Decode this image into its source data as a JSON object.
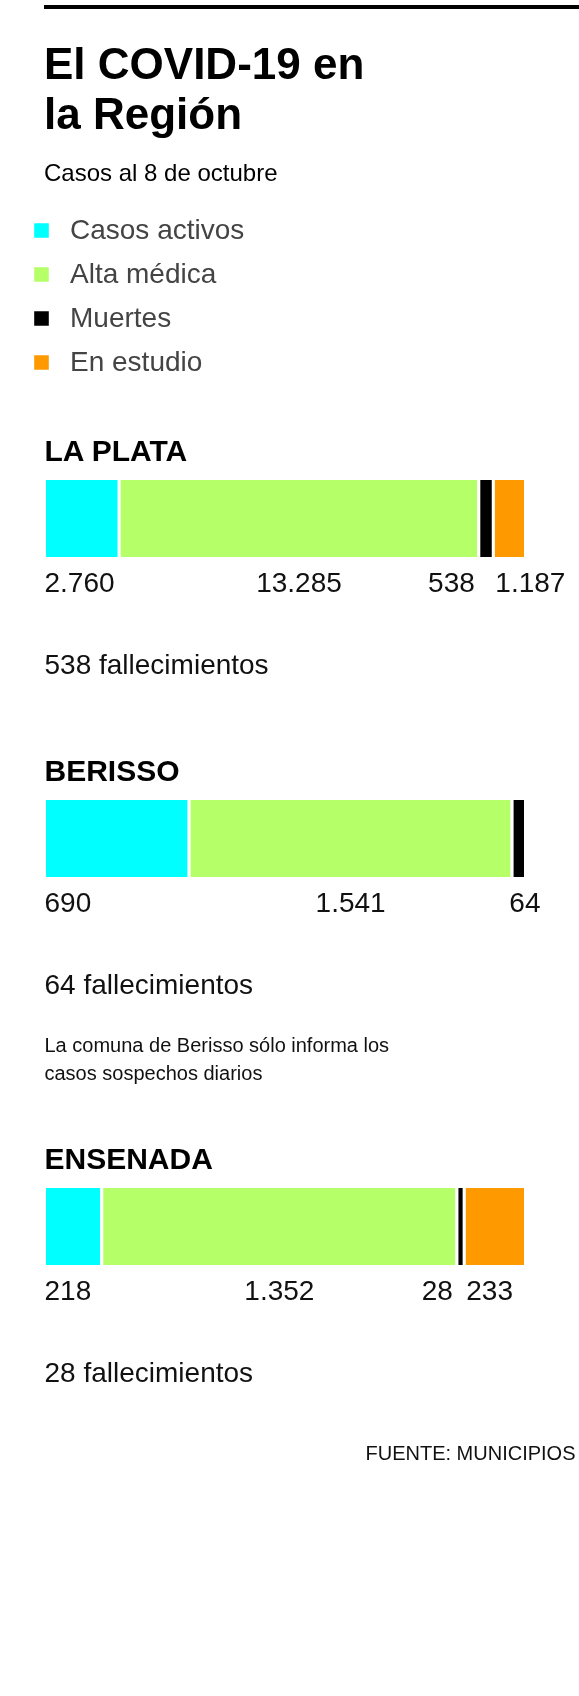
{
  "chart_data": [
    {
      "type": "other",
      "title": "El COVID-19 en la Región",
      "subtitle": "Casos al 8 de octubre"
    },
    {
      "type": "bar",
      "orientation": "horizontal",
      "stacked": true,
      "title": "LA PLATA",
      "categories": [
        null
      ],
      "legend": "top",
      "series": [
        {
          "name": "Casos activos",
          "color": "#00ffff",
          "values": [
            2760
          ],
          "value_labels": [
            "2.760"
          ]
        },
        {
          "name": "Alta médica",
          "color": "#b5ff69",
          "values": [
            13285
          ],
          "value_labels": [
            "13.285"
          ]
        },
        {
          "name": "Muertes",
          "color": "#000000",
          "values": [
            538
          ],
          "value_labels": [
            "538"
          ]
        },
        {
          "name": "En estudio",
          "color": "#ff9900",
          "values": [
            1187
          ],
          "value_labels": [
            "1.187"
          ]
        }
      ],
      "annotations": [
        "538 fallecimientos"
      ]
    },
    {
      "type": "bar",
      "orientation": "horizontal",
      "stacked": true,
      "title": "BERISSO",
      "categories": [
        null
      ],
      "series": [
        {
          "color": "#00ffff",
          "values": [
            690
          ],
          "value_labels": [
            "690"
          ]
        },
        {
          "color": "#b5ff69",
          "values": [
            1541
          ],
          "value_labels": [
            "1.541"
          ]
        },
        {
          "color": "#000000",
          "values": [
            64
          ],
          "value_labels": [
            "64"
          ]
        }
      ],
      "annotations": [
        "64 fallecimientos",
        "La comuna de Berisso sólo informa los casos sospechos diarios"
      ]
    },
    {
      "type": "bar",
      "orientation": "horizontal",
      "stacked": true,
      "title": "ENSENADA",
      "categories": [
        null
      ],
      "series": [
        {
          "color": "#00ffff",
          "values": [
            218
          ],
          "value_labels": [
            "218"
          ]
        },
        {
          "color": "#b5ff69",
          "values": [
            1352
          ],
          "value_labels": [
            "1.352"
          ]
        },
        {
          "color": "#000000",
          "values": [
            28
          ],
          "value_labels": [
            "28"
          ]
        },
        {
          "color": "#ff9900",
          "values": [
            233
          ],
          "value_labels": [
            "233"
          ]
        }
      ],
      "annotations": [
        "28 fallecimientos",
        "FUENTE: MUNICIPIOS"
      ]
    }
  ]
}
